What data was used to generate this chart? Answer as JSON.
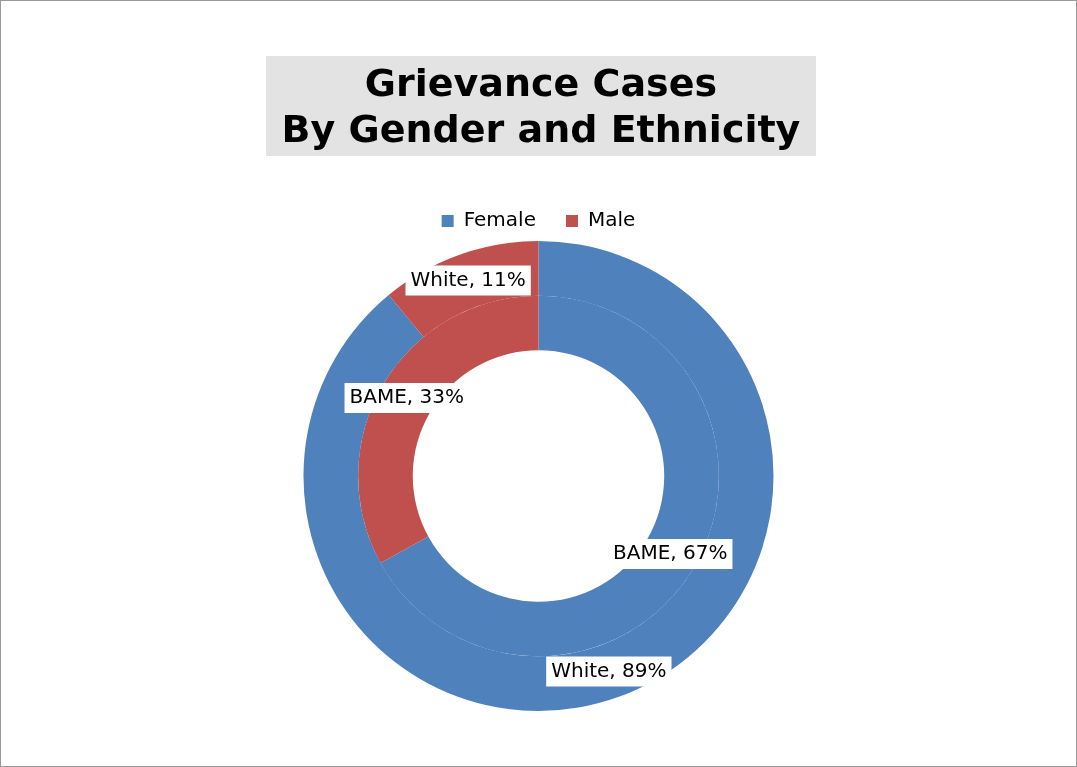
{
  "chart_data": {
    "type": "donut",
    "title": "Grievance Cases\nBy Gender and Ethnicity",
    "categories": [
      "Female",
      "Male"
    ],
    "colors": [
      "#4f81bd",
      "#c0504d"
    ],
    "legend": "top",
    "series": [
      {
        "values": [
          89,
          11
        ],
        "value_labels": [
          "White, 89%",
          "White, 11%"
        ]
      },
      {
        "values": [
          67,
          33
        ],
        "value_labels": [
          "BAME, 67%",
          "BAME, 33%"
        ]
      }
    ]
  }
}
